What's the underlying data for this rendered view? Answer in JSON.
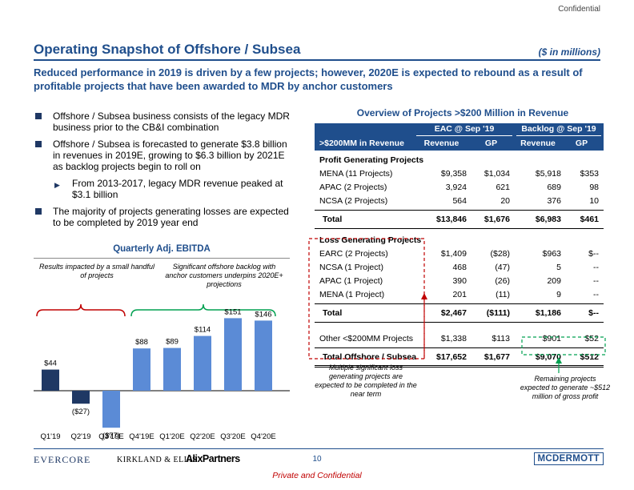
{
  "header": {
    "confidential": "Confidential",
    "title": "Operating Snapshot of Offshore / Subsea",
    "units": "($ in millions)",
    "subtitle": "Reduced performance in 2019 is driven by a few projects; however, 2020E is expected to rebound as a result of profitable projects that have been awarded to MDR by anchor customers"
  },
  "bullets": [
    "Offshore / Subsea business consists of the legacy MDR business prior to the CB&I combination",
    "Offshore / Subsea is forecasted to generate $3.8 billion in revenues in 2019E, growing to $6.3 billion by 2021E as backlog projects begin to roll on",
    "The majority of projects generating losses are expected to be completed by 2019 year end"
  ],
  "sub_bullet": "From 2013-2017, legacy MDR revenue peaked at $3.1 billion",
  "ebitda": {
    "title": "Quarterly Adj. EBITDA",
    "note_left": "Results impacted by a small handful of projects",
    "note_right": "Significant offshore backlog with anchor customers underpins 2020E+ projections"
  },
  "chart_data": {
    "type": "bar",
    "title": "Quarterly Adj. EBITDA",
    "categories": [
      "Q1'19",
      "Q2'19",
      "Q3'19E",
      "Q4'19E",
      "Q1'20E",
      "Q2'20E",
      "Q3'20E",
      "Q4'20E"
    ],
    "values": [
      44,
      -27,
      -77,
      88,
      89,
      114,
      151,
      146
    ],
    "labels": [
      "$44",
      "($27)",
      "($77)",
      "$88",
      "$89",
      "$114",
      "$151",
      "$146"
    ],
    "ylim": [
      -80,
      160
    ],
    "colors": {
      "actual": "#1f3864",
      "projected": "#5b8bd6",
      "bracket_left": "#c00000",
      "bracket_right": "#00a050"
    }
  },
  "overview": {
    "title": "Overview of Projects >$200 Million in Revenue",
    "group_headers": [
      "EAC @ Sep '19",
      "Backlog @ Sep '19"
    ],
    "col_headers": [
      ">$200MM in Revenue",
      "Revenue",
      "GP",
      "Revenue",
      "GP"
    ],
    "profit_section": "Profit Generating Projects",
    "profit_rows": [
      [
        "MENA (11 Projects)",
        "$9,358",
        "$1,034",
        "$5,918",
        "$353"
      ],
      [
        "APAC (2 Projects)",
        "3,924",
        "621",
        "689",
        "98"
      ],
      [
        "NCSA (2 Projects)",
        "564",
        "20",
        "376",
        "10"
      ]
    ],
    "profit_total": [
      "Total",
      "$13,846",
      "$1,676",
      "$6,983",
      "$461"
    ],
    "loss_section": "Loss Generating Projects",
    "loss_rows": [
      [
        "EARC (2 Projects)",
        "$1,409",
        "($28)",
        "$963",
        "$--"
      ],
      [
        "NCSA (1 Project)",
        "468",
        "(47)",
        "5",
        "--"
      ],
      [
        "APAC (1 Project)",
        "390",
        "(26)",
        "209",
        "--"
      ],
      [
        "MENA (1 Project)",
        "201",
        "(11)",
        "9",
        "--"
      ]
    ],
    "loss_total": [
      "Total",
      "$2,467",
      "($111)",
      "$1,186",
      "$--"
    ],
    "other_row": [
      "Other <$200MM Projects",
      "$1,338",
      "$113",
      "$901",
      "$52"
    ],
    "grand_total": [
      "Total Offshore / Subsea",
      "$17,652",
      "$1,677",
      "$9,070",
      "$512"
    ],
    "note_left": "Multiple significant loss generating projects are expected to be completed in the near term",
    "note_right": "Remaining projects expected to generate ~$512 million of gross profit"
  },
  "footer": {
    "evercore": "EVERCORE",
    "kirkland": "KIRKLAND & ELLIS",
    "alix": "AlixPartners",
    "page": "10",
    "mcdermott": "MCDERMOTT",
    "private": "Private and Confidential"
  }
}
